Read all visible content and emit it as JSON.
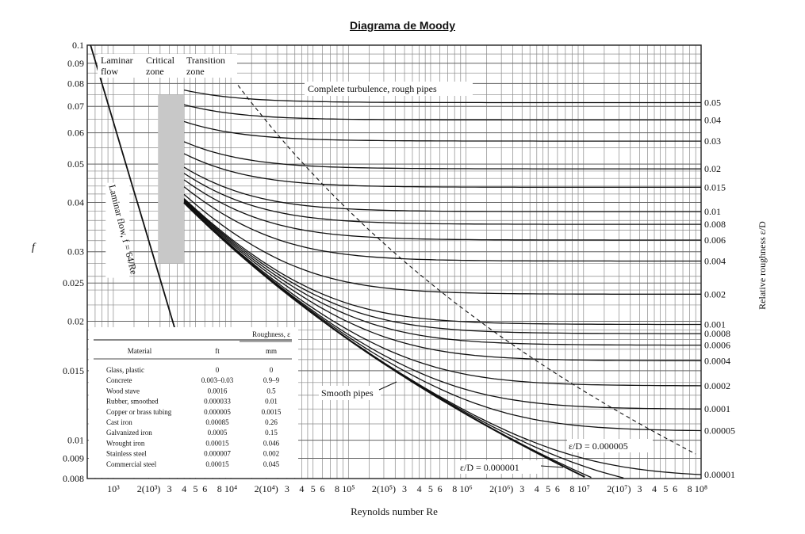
{
  "chart_data": {
    "type": "line",
    "title": "Diagrama de Moody",
    "xlabel": "Reynolds number Re",
    "ylabel": "f",
    "y2label": "Relative roughness ε/D",
    "xscale": "log",
    "yscale": "log",
    "xlim": [
      600,
      100000000
    ],
    "ylim": [
      0.008,
      0.1
    ],
    "grid": true,
    "x_ticks": [
      {
        "v": 1000,
        "t": "10³"
      },
      {
        "v": 2000,
        "t": "2(10³)"
      },
      {
        "v": 3000,
        "t": "3"
      },
      {
        "v": 4000,
        "t": "4"
      },
      {
        "v": 5000,
        "t": "5"
      },
      {
        "v": 6000,
        "t": "6"
      },
      {
        "v": 8000,
        "t": "8"
      },
      {
        "v": 10000,
        "t": "10⁴"
      },
      {
        "v": 20000,
        "t": "2(10⁴)"
      },
      {
        "v": 30000,
        "t": "3"
      },
      {
        "v": 40000,
        "t": "4"
      },
      {
        "v": 50000,
        "t": "5"
      },
      {
        "v": 60000,
        "t": "6"
      },
      {
        "v": 80000,
        "t": "8"
      },
      {
        "v": 100000,
        "t": "10⁵"
      },
      {
        "v": 200000,
        "t": "2(10⁵)"
      },
      {
        "v": 300000,
        "t": "3"
      },
      {
        "v": 400000,
        "t": "4"
      },
      {
        "v": 500000,
        "t": "5"
      },
      {
        "v": 600000,
        "t": "6"
      },
      {
        "v": 800000,
        "t": "8"
      },
      {
        "v": 1000000,
        "t": "10⁶"
      },
      {
        "v": 2000000,
        "t": "2(10⁶)"
      },
      {
        "v": 3000000,
        "t": "3"
      },
      {
        "v": 4000000,
        "t": "4"
      },
      {
        "v": 5000000,
        "t": "5"
      },
      {
        "v": 6000000,
        "t": "6"
      },
      {
        "v": 8000000,
        "t": "8"
      },
      {
        "v": 10000000,
        "t": "10⁷"
      },
      {
        "v": 20000000,
        "t": "2(10⁷)"
      },
      {
        "v": 30000000,
        "t": "3"
      },
      {
        "v": 40000000,
        "t": "4"
      },
      {
        "v": 50000000,
        "t": "5"
      },
      {
        "v": 60000000,
        "t": "6"
      },
      {
        "v": 80000000,
        "t": "8"
      },
      {
        "v": 100000000,
        "t": "10⁸"
      }
    ],
    "y_ticks": [
      {
        "v": 0.1,
        "t": "0.1"
      },
      {
        "v": 0.09,
        "t": "0.09"
      },
      {
        "v": 0.08,
        "t": "0.08"
      },
      {
        "v": 0.07,
        "t": "0.07"
      },
      {
        "v": 0.06,
        "t": "0.06"
      },
      {
        "v": 0.05,
        "t": "0.05"
      },
      {
        "v": 0.04,
        "t": "0.04"
      },
      {
        "v": 0.03,
        "t": "0.03"
      },
      {
        "v": 0.025,
        "t": "0.025"
      },
      {
        "v": 0.02,
        "t": "0.02"
      },
      {
        "v": 0.015,
        "t": "0.015"
      },
      {
        "v": 0.01,
        "t": "0.01"
      },
      {
        "v": 0.009,
        "t": "0.009"
      },
      {
        "v": 0.008,
        "t": "0.008"
      }
    ],
    "roughness_curves": [
      {
        "label": "0.05",
        "value": 0.05
      },
      {
        "label": "0.04",
        "value": 0.04
      },
      {
        "label": "0.03",
        "value": 0.03
      },
      {
        "label": "0.02",
        "value": 0.02
      },
      {
        "label": "0.015",
        "value": 0.015
      },
      {
        "label": "0.01",
        "value": 0.01
      },
      {
        "label": "0.008",
        "value": 0.008
      },
      {
        "label": "0.006",
        "value": 0.006
      },
      {
        "label": "0.004",
        "value": 0.004
      },
      {
        "label": "0.002",
        "value": 0.002
      },
      {
        "label": "0.001",
        "value": 0.001
      },
      {
        "label": "0.0008",
        "value": 0.0008
      },
      {
        "label": "0.0006",
        "value": 0.0006
      },
      {
        "label": "0.0004",
        "value": 0.0004
      },
      {
        "label": "0.0002",
        "value": 0.0002
      },
      {
        "label": "0.0001",
        "value": 0.0001
      },
      {
        "label": "0.00005",
        "value": 5e-05
      },
      {
        "label": "0.00001",
        "value": 1e-05
      }
    ],
    "smooth_pipe_values": [
      5e-06,
      1e-06
    ],
    "annotations": {
      "laminar_flow": "Laminar\nflow",
      "critical_zone": "Critical\nzone",
      "transition_zone": "Transition\nzone",
      "complete_turbulence": "Complete turbulence, rough pipes",
      "laminar_equation": "Laminar flow, f = 64/Re",
      "smooth_pipes": "Smooth pipes",
      "ed_000005": "ε/D = 0.000005",
      "ed_000001": "ε/D = 0.000001"
    },
    "roughness_table": {
      "group_header": "Roughness, ε",
      "columns": [
        "Material",
        "ft",
        "mm"
      ],
      "rows": [
        [
          "Glass, plastic",
          "0",
          "0"
        ],
        [
          "Concrete",
          "0.003–0.03",
          "0.9–9"
        ],
        [
          "Wood stave",
          "0.0016",
          "0.5"
        ],
        [
          "Rubber, smoothed",
          "0.000033",
          "0.01"
        ],
        [
          "Copper or brass tubing",
          "0.000005",
          "0.0015"
        ],
        [
          "Cast iron",
          "0.00085",
          "0.26"
        ],
        [
          "Galvanized iron",
          "0.0005",
          "0.15"
        ],
        [
          "Wrought iron",
          "0.00015",
          "0.046"
        ],
        [
          "Stainless steel",
          "0.000007",
          "0.002"
        ],
        [
          "Commercial steel",
          "0.00015",
          "0.045"
        ]
      ]
    }
  }
}
